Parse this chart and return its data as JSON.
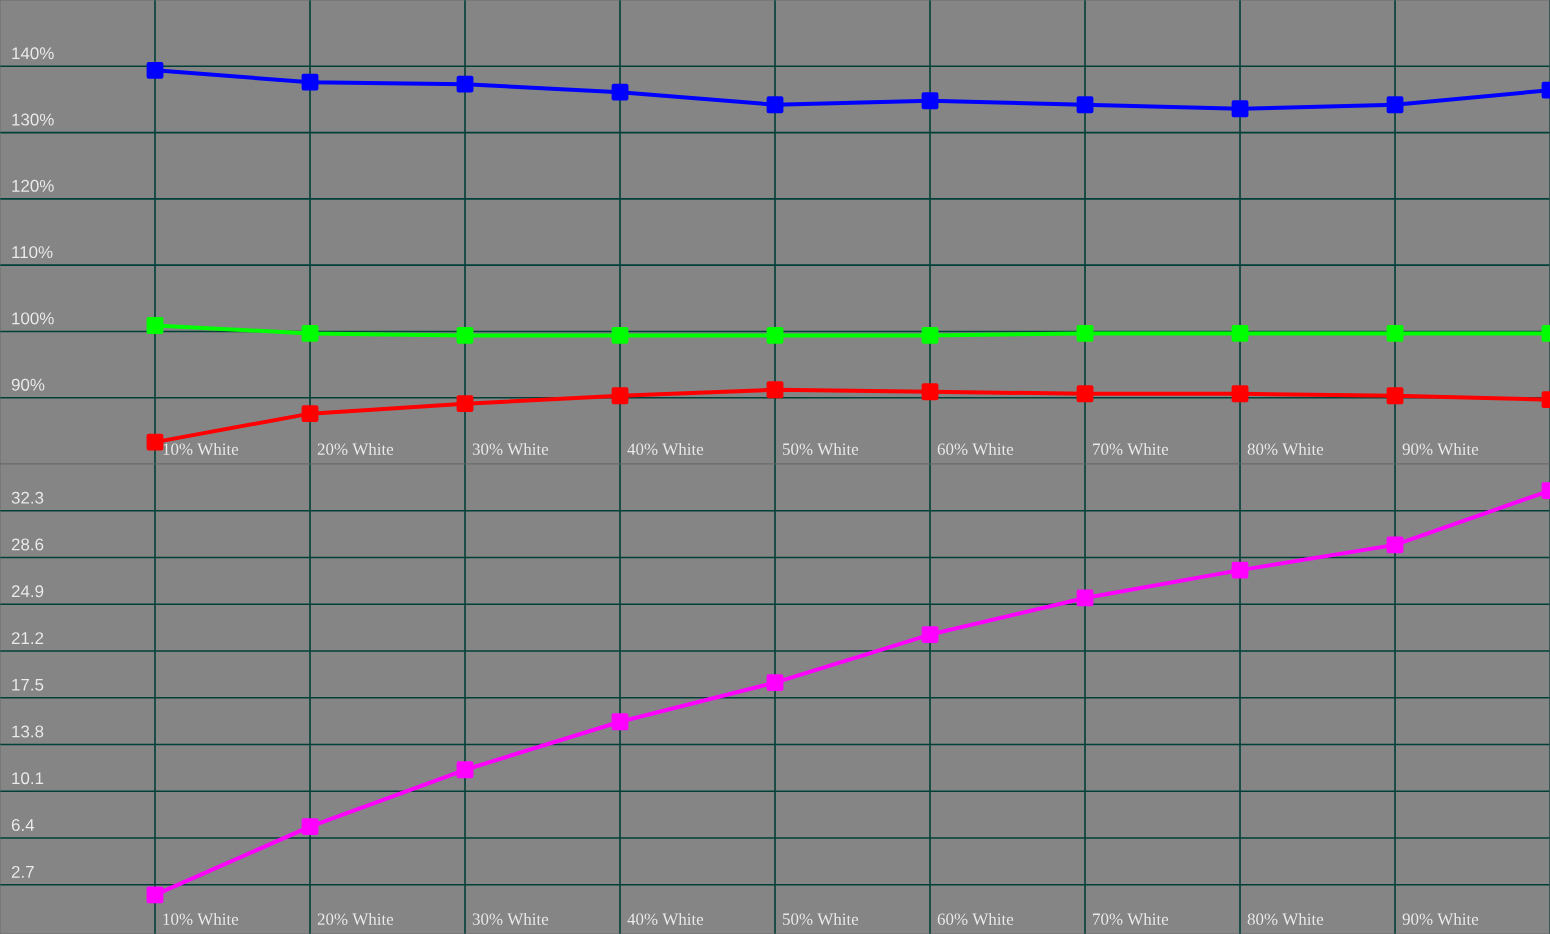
{
  "chart_data": [
    {
      "type": "line",
      "categories": [
        "10% White",
        "20% White",
        "30% White",
        "40% White",
        "50% White",
        "60% White",
        "70% White",
        "80% White",
        "90% White",
        null
      ],
      "series": [
        {
          "color": "#0000ff",
          "values": [
            139.4,
            137.6,
            137.3,
            136.1,
            134.2,
            134.8,
            134.2,
            133.6,
            134.2,
            136.4
          ]
        },
        {
          "color": "#00ff00",
          "values": [
            100.9,
            99.7,
            99.4,
            99.4,
            99.4,
            99.4,
            99.7,
            99.7,
            99.7,
            99.7
          ]
        },
        {
          "color": "#ff0000",
          "values": [
            83.3,
            87.6,
            89.1,
            90.3,
            91.2,
            90.9,
            90.6,
            90.6,
            90.3,
            89.7
          ]
        }
      ],
      "ylim": [
        80,
        150
      ],
      "yticks": [
        {
          "value": 90,
          "label": "90%"
        },
        {
          "value": 100,
          "label": "100%"
        },
        {
          "value": 110,
          "label": "110%"
        },
        {
          "value": 120,
          "label": "120%"
        },
        {
          "value": 130,
          "label": "130%"
        },
        {
          "value": 140,
          "label": "140%"
        }
      ],
      "grid": true,
      "marker": "square"
    },
    {
      "type": "line",
      "categories": [
        "10% White",
        "20% White",
        "30% White",
        "40% White",
        "50% White",
        "60% White",
        "70% White",
        "80% White",
        "90% White",
        null
      ],
      "series": [
        {
          "color": "#ff00ff",
          "values": [
            1.9,
            7.3,
            11.8,
            15.6,
            18.7,
            22.5,
            25.4,
            27.6,
            29.6,
            33.9
          ]
        }
      ],
      "ylim": [
        -1.2,
        36
      ],
      "yticks": [
        2.7,
        6.4,
        10.1,
        13.8,
        17.5,
        21.2,
        24.9,
        28.6,
        32.3
      ],
      "grid": true,
      "marker": "square"
    }
  ]
}
